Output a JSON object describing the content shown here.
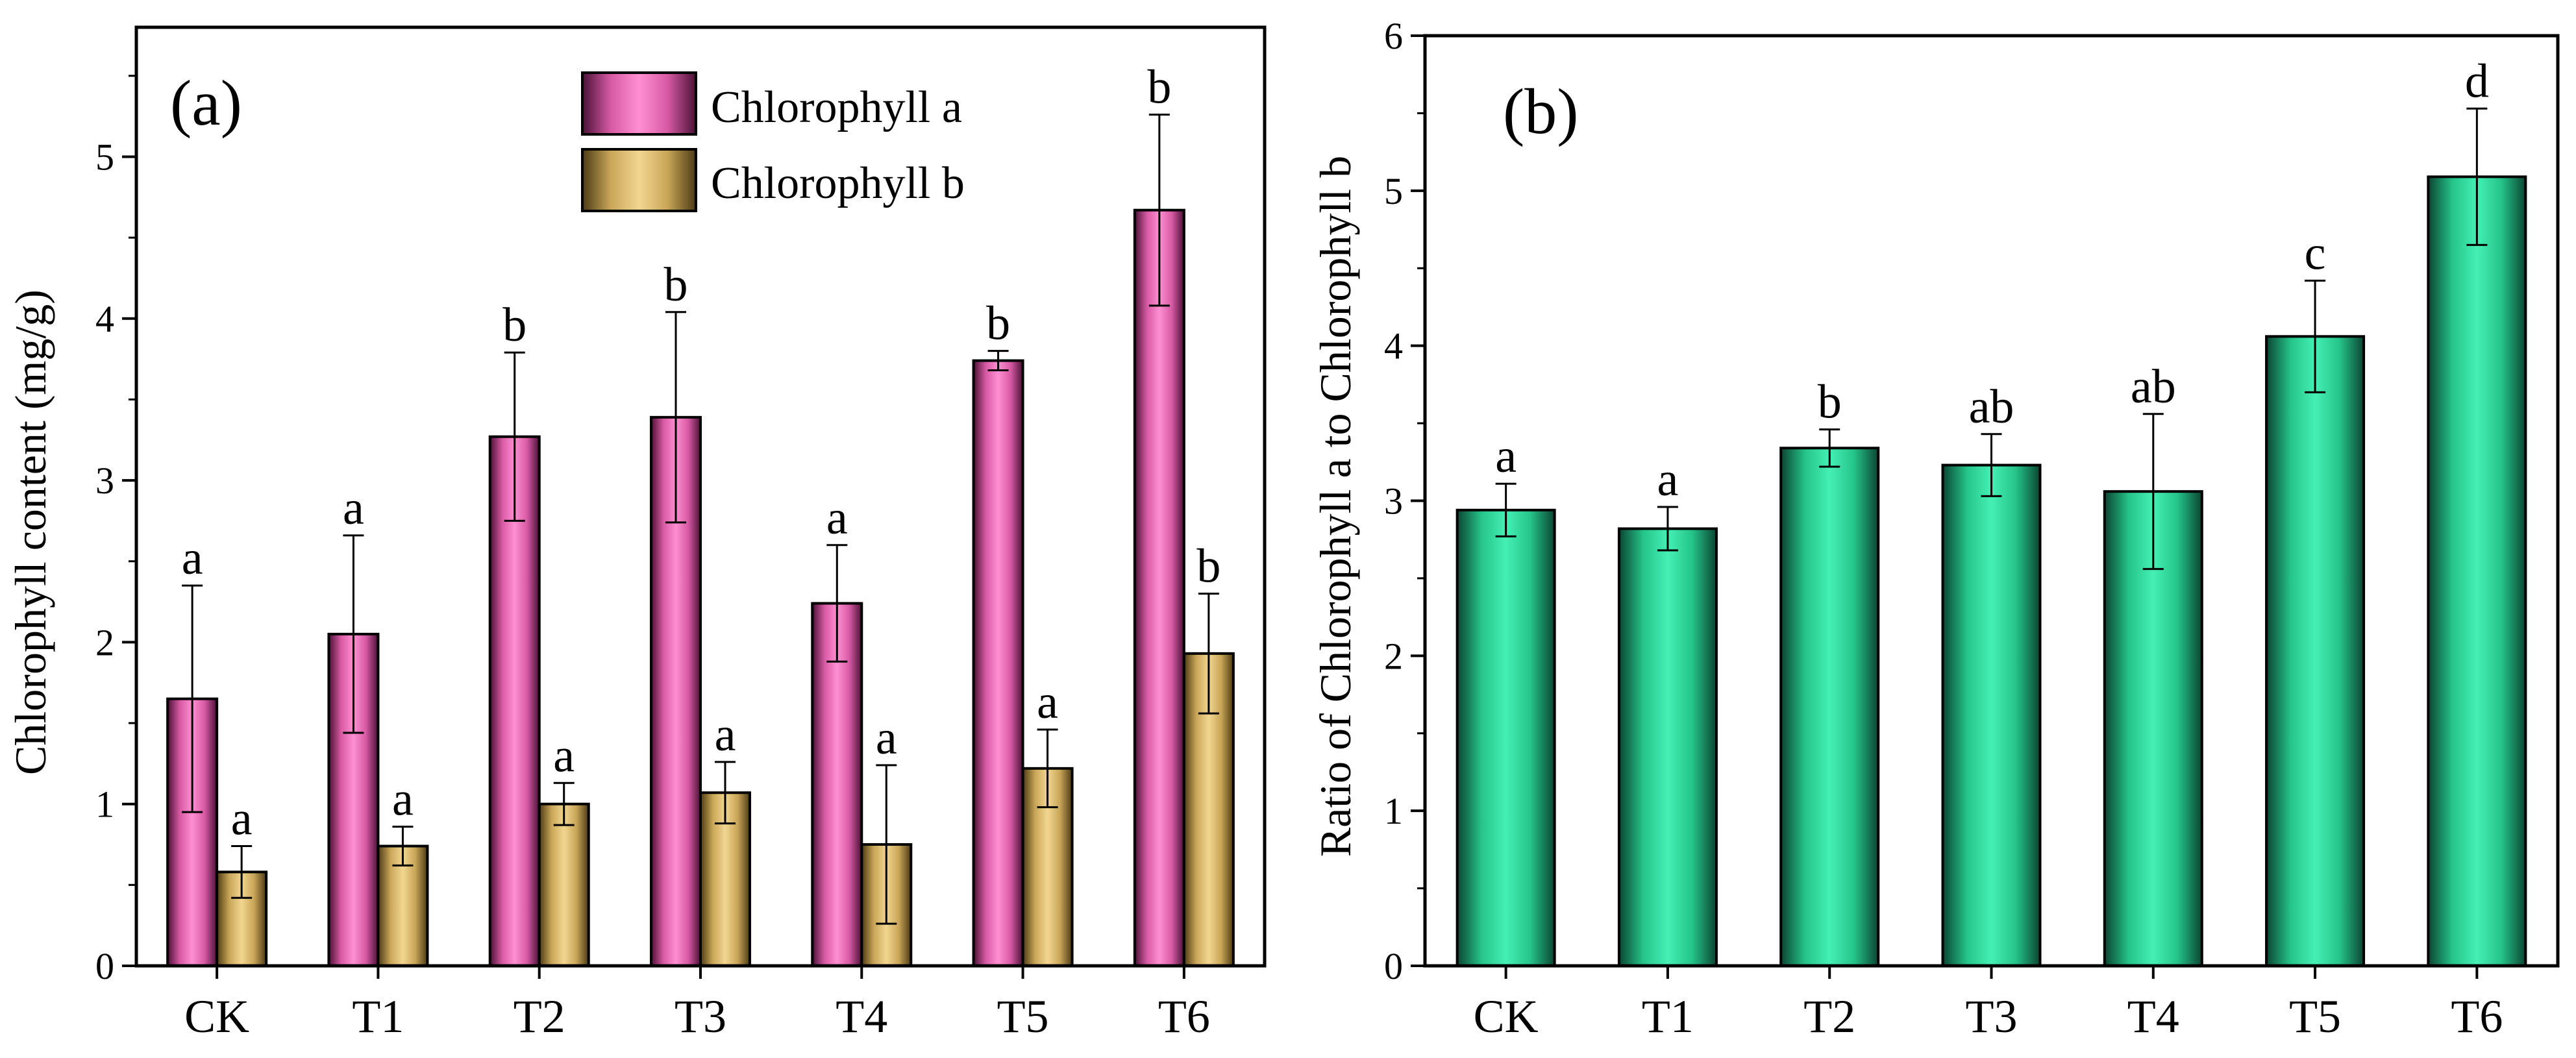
{
  "chart_data": [
    {
      "type": "bar",
      "panel_label": "(a)",
      "categories": [
        "CK",
        "T1",
        "T2",
        "T3",
        "T4",
        "T5",
        "T6"
      ],
      "ylabel": "Chlorophyll content (mg/g)",
      "xlabel": "",
      "ylim": [
        0,
        5.8
      ],
      "yticks": [
        0,
        1,
        2,
        3,
        4,
        5
      ],
      "legend_position": "top-center",
      "series": [
        {
          "name": "Chlorophyll a",
          "color": "#ff77c8",
          "values": [
            1.65,
            2.05,
            3.27,
            3.39,
            2.24,
            3.74,
            4.67
          ],
          "errors": [
            0.7,
            0.61,
            0.52,
            0.65,
            0.36,
            0.06,
            0.59
          ],
          "letters": [
            "a",
            "a",
            "b",
            "b",
            "a",
            "b",
            "b"
          ]
        },
        {
          "name": "Chlorophyll b",
          "color": "#e9c878",
          "values": [
            0.58,
            0.74,
            1.0,
            1.07,
            0.75,
            1.22,
            1.93
          ],
          "errors": [
            0.16,
            0.12,
            0.13,
            0.19,
            0.49,
            0.24,
            0.37
          ],
          "letters": [
            "a",
            "a",
            "a",
            "a",
            "a",
            "a",
            "b"
          ]
        }
      ]
    },
    {
      "type": "bar",
      "panel_label": "(b)",
      "categories": [
        "CK",
        "T1",
        "T2",
        "T3",
        "T4",
        "T5",
        "T6"
      ],
      "ylabel": "Ratio of Chlorophyll a to Chlorophyll b",
      "xlabel": "",
      "ylim": [
        0,
        6
      ],
      "yticks": [
        0,
        1,
        2,
        3,
        4,
        5,
        6
      ],
      "series": [
        {
          "name": "Ratio",
          "color": "#3be8a8",
          "values": [
            2.94,
            2.82,
            3.34,
            3.23,
            3.06,
            4.06,
            5.09
          ],
          "errors": [
            0.17,
            0.14,
            0.12,
            0.2,
            0.5,
            0.36,
            0.44
          ],
          "letters": [
            "a",
            "a",
            "b",
            "ab",
            "ab",
            "c",
            "d"
          ]
        }
      ]
    }
  ]
}
